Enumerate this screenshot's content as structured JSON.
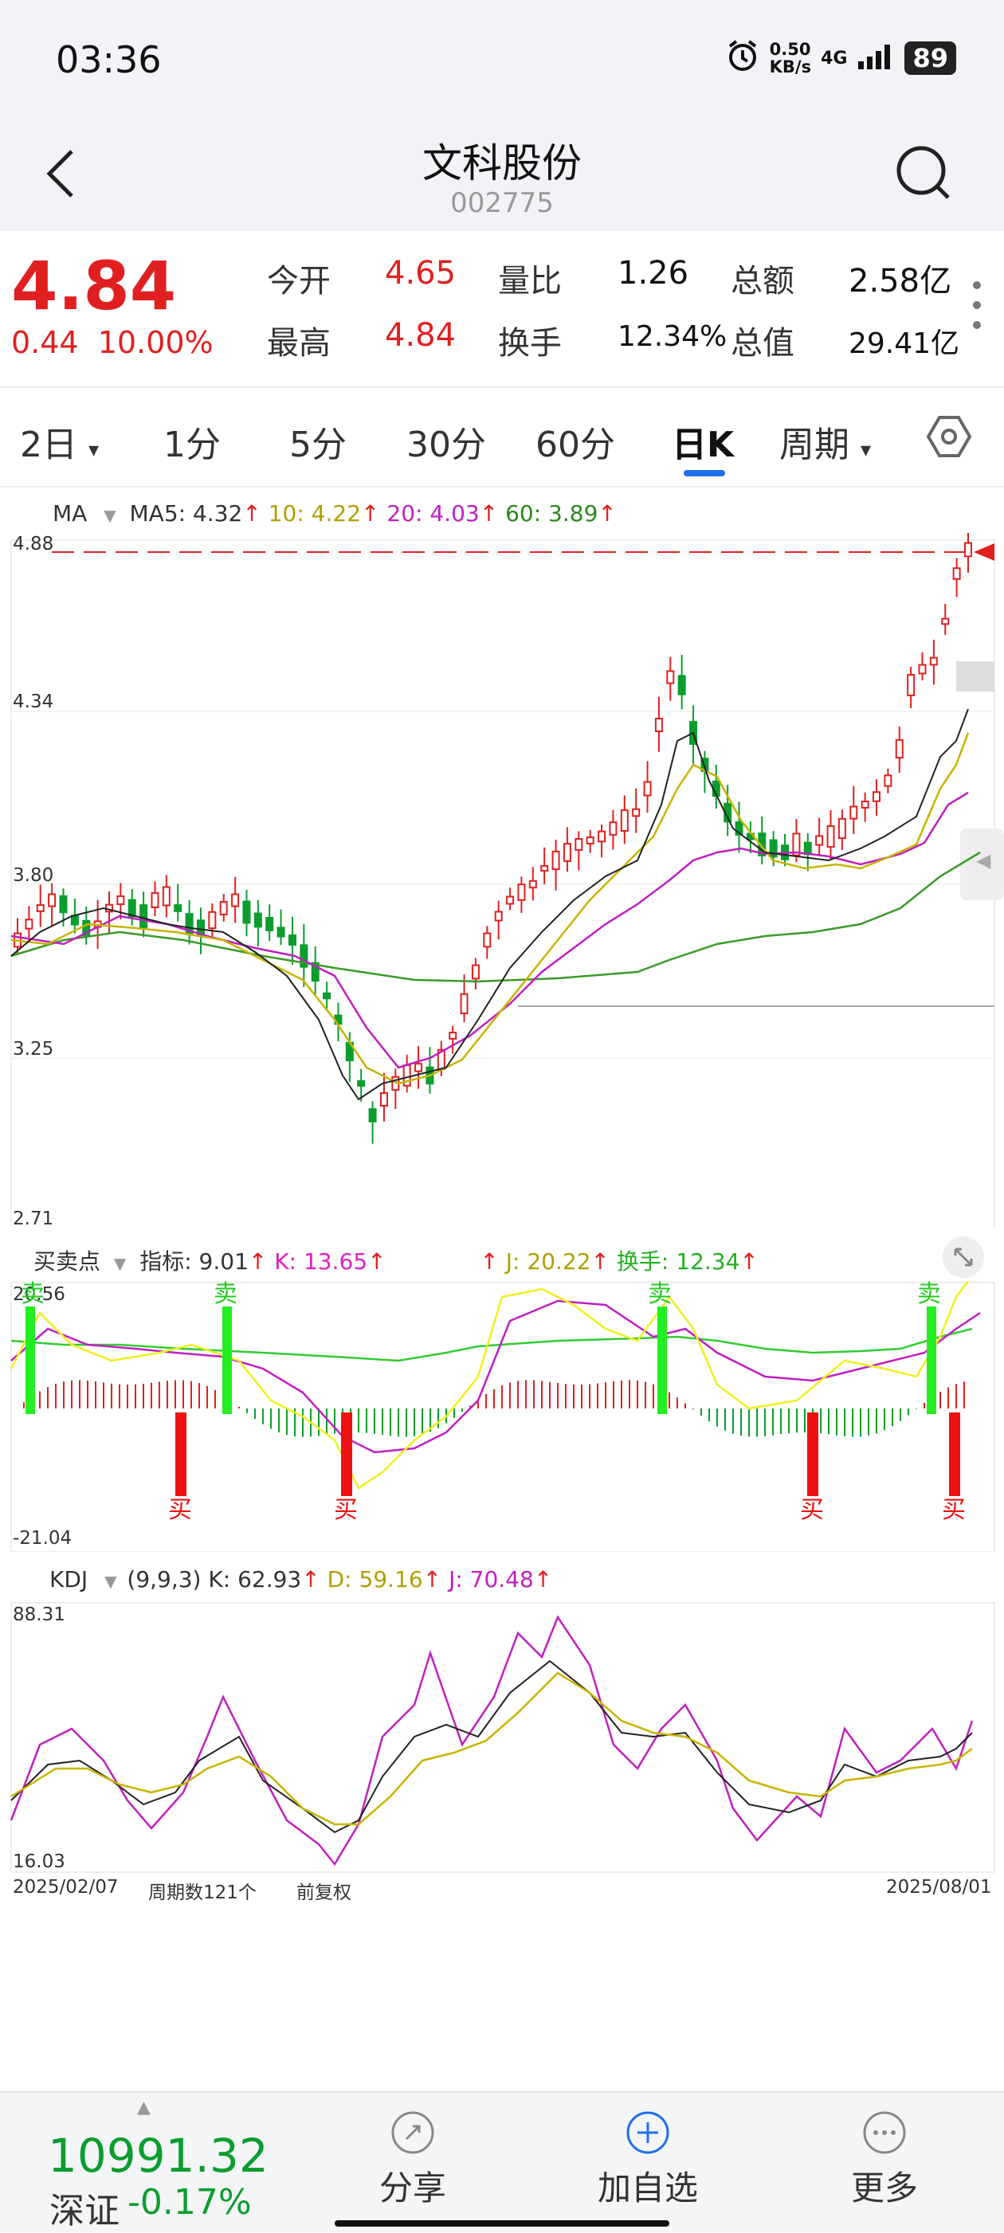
{
  "status": {
    "time": "03:36",
    "net_speed": "0.50",
    "net_unit": "KB/s",
    "net_type": "4G",
    "battery": "89"
  },
  "header": {
    "title": "文科股份",
    "code": "002775"
  },
  "quote": {
    "price": "4.84",
    "change": "0.44",
    "change_pct": "10.00%",
    "stats": [
      {
        "label": "今开",
        "value": "4.65"
      },
      {
        "label": "量比",
        "value": "1.26"
      },
      {
        "label": "总额",
        "value": "2.58亿"
      },
      {
        "label": "最高",
        "value": "4.84"
      },
      {
        "label": "换手",
        "value": "12.34%"
      },
      {
        "label": "总值",
        "value": "29.41亿"
      }
    ]
  },
  "tabs": [
    "2日",
    "1分",
    "5分",
    "30分",
    "60分",
    "日K",
    "周期"
  ],
  "active_tab": "日K",
  "ma": {
    "name": "MA",
    "ma5": "MA5: 4.32",
    "ma10": "10: 4.22",
    "ma20": "20: 4.03",
    "ma60": "60: 3.89",
    "axis": [
      "4.88",
      "4.34",
      "3.80",
      "3.25",
      "2.71"
    ]
  },
  "bs": {
    "name": "买卖点",
    "ind": "指标: 9.01",
    "k": "K: 13.65",
    "j": "J: 20.22",
    "hs": "换手: 12.34",
    "axis": [
      "20.56",
      "-21.04"
    ],
    "sell": "卖",
    "buy": "买"
  },
  "kdj": {
    "name": "KDJ",
    "params": "(9,9,3)",
    "k": "K: 62.93",
    "d": "D: 59.16",
    "j": "J: 70.48",
    "axis": [
      "88.31",
      "16.03"
    ]
  },
  "footer": {
    "start": "2025/02/07",
    "count": "周期数121个",
    "adj": "前复权",
    "end": "2025/08/01"
  },
  "bottom": {
    "index_value": "10991.32",
    "index_name": "深证",
    "index_change": "-0.17%",
    "share": "分享",
    "add": "加自选",
    "more": "更多"
  },
  "colors": {
    "up": "#e02020",
    "down": "#0b9d2e",
    "accent": "#1e6ff0",
    "ma5": "#222222",
    "ma10": "#c8b400",
    "ma20": "#c020c0",
    "ma60": "#3a9a2a"
  }
}
